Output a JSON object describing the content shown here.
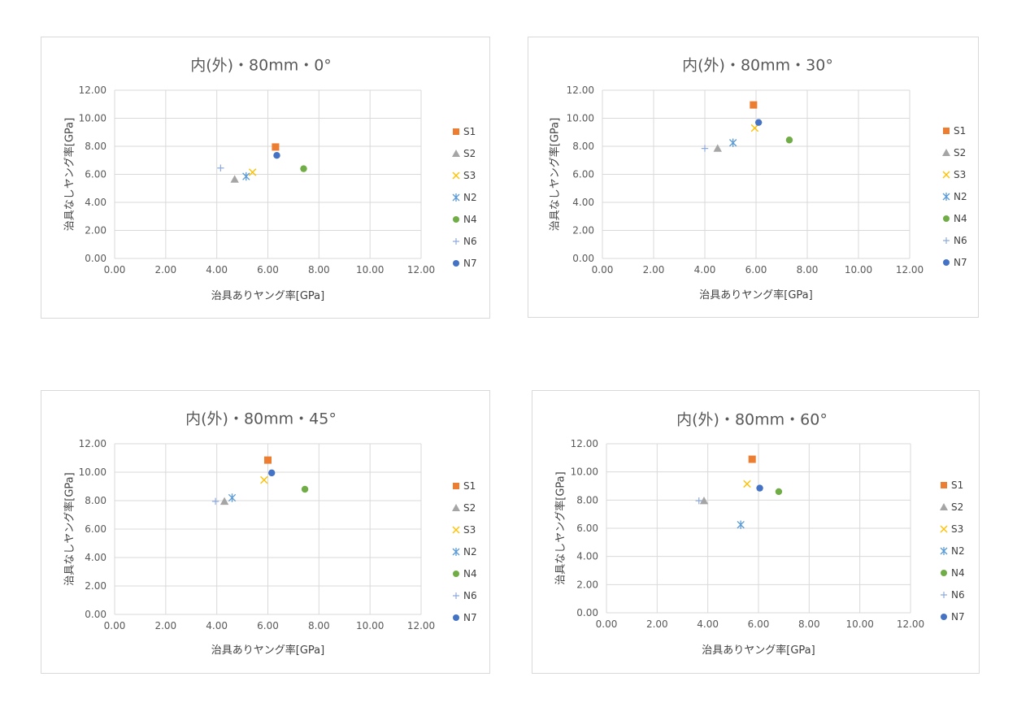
{
  "series_styles": {
    "S1": {
      "marker": "square",
      "color": "#ED7D31"
    },
    "S2": {
      "marker": "triangle",
      "color": "#A5A5A5"
    },
    "S3": {
      "marker": "x",
      "color": "#FFC000"
    },
    "N2": {
      "marker": "asterisk",
      "color": "#5B9BD5"
    },
    "N4": {
      "marker": "circle",
      "color": "#70AD47"
    },
    "N6": {
      "marker": "plus",
      "color": "#8FAADC"
    },
    "N7": {
      "marker": "circle",
      "color": "#4472C4"
    }
  },
  "chart_data": [
    {
      "type": "scatter",
      "title": "内(外)・80mm・0°",
      "xlabel": "治具ありヤング率[GPa]",
      "ylabel": "治具なしヤング率[GPa]",
      "xlim": [
        0,
        12
      ],
      "ylim": [
        0,
        12
      ],
      "x_ticks": [
        "0.00",
        "2.00",
        "4.00",
        "6.00",
        "8.00",
        "10.00",
        "12.00"
      ],
      "y_ticks": [
        "0.00",
        "2.00",
        "4.00",
        "6.00",
        "8.00",
        "10.00",
        "12.00"
      ],
      "grid": true,
      "legend": "right",
      "series": [
        {
          "name": "S1",
          "x": 6.3,
          "y": 7.95
        },
        {
          "name": "S2",
          "x": 4.7,
          "y": 5.65
        },
        {
          "name": "S3",
          "x": 5.4,
          "y": 6.15
        },
        {
          "name": "N2",
          "x": 5.15,
          "y": 5.85
        },
        {
          "name": "N4",
          "x": 7.4,
          "y": 6.4
        },
        {
          "name": "N6",
          "x": 4.15,
          "y": 6.45
        },
        {
          "name": "N7",
          "x": 6.35,
          "y": 7.35
        }
      ]
    },
    {
      "type": "scatter",
      "title": "内(外)・80mm・30°",
      "xlabel": "治具ありヤング率[GPa]",
      "ylabel": "治具なしヤング率[GPa]",
      "xlim": [
        0,
        12
      ],
      "ylim": [
        0,
        12
      ],
      "x_ticks": [
        "0.00",
        "2.00",
        "4.00",
        "6.00",
        "8.00",
        "10.00",
        "12.00"
      ],
      "y_ticks": [
        "0.00",
        "2.00",
        "4.00",
        "6.00",
        "8.00",
        "10.00",
        "12.00"
      ],
      "grid": true,
      "legend": "right",
      "series": [
        {
          "name": "S1",
          "x": 5.9,
          "y": 10.95
        },
        {
          "name": "S2",
          "x": 4.5,
          "y": 7.85
        },
        {
          "name": "S3",
          "x": 5.95,
          "y": 9.3
        },
        {
          "name": "N2",
          "x": 5.1,
          "y": 8.25
        },
        {
          "name": "N4",
          "x": 7.3,
          "y": 8.45
        },
        {
          "name": "N6",
          "x": 4.0,
          "y": 7.85
        },
        {
          "name": "N7",
          "x": 6.1,
          "y": 9.7
        }
      ]
    },
    {
      "type": "scatter",
      "title": "内(外)・80mm・45°",
      "xlabel": "治具ありヤング率[GPa]",
      "ylabel": "治具なしヤング率[GPa]",
      "xlim": [
        0,
        12
      ],
      "ylim": [
        0,
        12
      ],
      "x_ticks": [
        "0.00",
        "2.00",
        "4.00",
        "6.00",
        "8.00",
        "10.00",
        "12.00"
      ],
      "y_ticks": [
        "0.00",
        "2.00",
        "4.00",
        "6.00",
        "8.00",
        "10.00",
        "12.00"
      ],
      "grid": true,
      "legend": "right",
      "series": [
        {
          "name": "S1",
          "x": 6.0,
          "y": 10.85
        },
        {
          "name": "S2",
          "x": 4.3,
          "y": 7.95
        },
        {
          "name": "S3",
          "x": 5.85,
          "y": 9.45
        },
        {
          "name": "N2",
          "x": 4.6,
          "y": 8.2
        },
        {
          "name": "N4",
          "x": 7.45,
          "y": 8.8
        },
        {
          "name": "N6",
          "x": 3.95,
          "y": 7.95
        },
        {
          "name": "N7",
          "x": 6.15,
          "y": 9.95
        }
      ]
    },
    {
      "type": "scatter",
      "title": "内(外)・80mm・60°",
      "xlabel": "治具ありヤング率[GPa]",
      "ylabel": "治具なしヤング率[GPa]",
      "xlim": [
        0,
        12
      ],
      "ylim": [
        0,
        12
      ],
      "x_ticks": [
        "0.00",
        "2.00",
        "4.00",
        "6.00",
        "8.00",
        "10.00",
        "12.00"
      ],
      "y_ticks": [
        "0.00",
        "2.00",
        "4.00",
        "6.00",
        "8.00",
        "10.00",
        "12.00"
      ],
      "grid": true,
      "legend": "right",
      "series": [
        {
          "name": "S1",
          "x": 5.75,
          "y": 10.9
        },
        {
          "name": "S2",
          "x": 3.85,
          "y": 7.95
        },
        {
          "name": "S3",
          "x": 5.55,
          "y": 9.15
        },
        {
          "name": "N2",
          "x": 5.3,
          "y": 6.25
        },
        {
          "name": "N4",
          "x": 6.8,
          "y": 8.6
        },
        {
          "name": "N6",
          "x": 3.65,
          "y": 7.95
        },
        {
          "name": "N7",
          "x": 6.05,
          "y": 8.85
        }
      ]
    }
  ]
}
